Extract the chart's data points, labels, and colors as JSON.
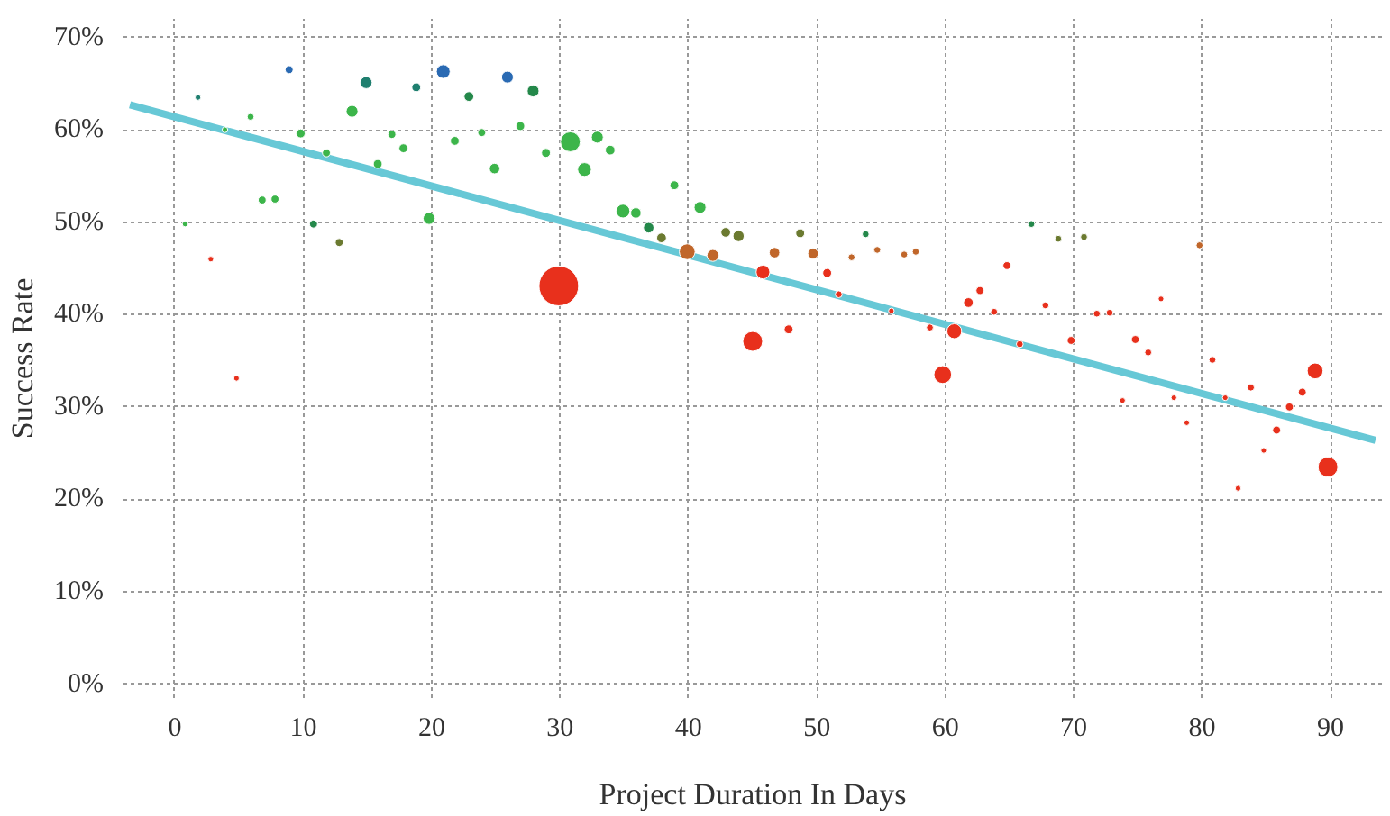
{
  "chart_data": {
    "type": "bubble",
    "xlabel": "Project Duration In Days",
    "ylabel": "Success Rate",
    "xlim": [
      -4,
      94
    ],
    "ylim": [
      -1.5,
      72
    ],
    "xticks": [
      0,
      10,
      20,
      30,
      40,
      50,
      60,
      70,
      80,
      90
    ],
    "yticks": [
      {
        "value": 0,
        "label": "0%"
      },
      {
        "value": 10,
        "label": "10%"
      },
      {
        "value": 20,
        "label": "20%"
      },
      {
        "value": 30,
        "label": "30%"
      },
      {
        "value": 40,
        "label": "40%"
      },
      {
        "value": 50,
        "label": "50%"
      },
      {
        "value": 60,
        "label": "60%"
      },
      {
        "value": 70,
        "label": "70%"
      }
    ],
    "grid": true,
    "series": [
      {
        "x": [
          1.8,
          8.9,
          14.9,
          18.8,
          20.9,
          22.9,
          25.9,
          27.9,
          5.9,
          13.8,
          3.9,
          9.8,
          11.8,
          16.9,
          17.8,
          15.8,
          21.8,
          23.9,
          24.9,
          26.9,
          6.8,
          7.8,
          0.8,
          10.8,
          19.8,
          12.8,
          2.8,
          4.8,
          28.9,
          30.8,
          32.9,
          33.9,
          31.9,
          38.9,
          40.9,
          34.9,
          35.9,
          36.9,
          37.9,
          39.9,
          41.9,
          42.9,
          43.9,
          46.7,
          48.7,
          49.7,
          53.8,
          52.7,
          54.7,
          56.8,
          57.7,
          29.9,
          45.8,
          50.8,
          51.7,
          55.8,
          58.8,
          60.7,
          45.0,
          47.8,
          59.8,
          66.7,
          68.8,
          70.8,
          79.8,
          64.8,
          62.7,
          61.8,
          63.8,
          67.8,
          76.8,
          71.8,
          72.8,
          65.8,
          69.8,
          74.8,
          75.8,
          80.8,
          88.8,
          87.8,
          83.8,
          81.8,
          86.8,
          73.8,
          77.8,
          78.8,
          85.8,
          84.8,
          82.8,
          89.8
        ],
        "values": [
          63.5,
          66.5,
          65.1,
          64.6,
          66.3,
          63.6,
          65.7,
          64.2,
          61.4,
          62.0,
          60.0,
          59.6,
          57.5,
          59.5,
          58.0,
          56.3,
          58.8,
          59.7,
          55.8,
          60.4,
          52.4,
          52.5,
          49.8,
          49.8,
          50.4,
          47.8,
          46.0,
          33.1,
          57.5,
          58.7,
          59.2,
          57.8,
          55.7,
          54.0,
          51.6,
          51.2,
          51.0,
          49.4,
          48.3,
          46.8,
          46.4,
          48.9,
          48.5,
          46.7,
          48.8,
          46.6,
          48.7,
          46.2,
          47.0,
          46.5,
          46.8,
          43.1,
          44.6,
          44.5,
          42.2,
          40.4,
          38.6,
          38.2,
          37.1,
          38.4,
          33.5,
          49.8,
          48.2,
          48.4,
          47.5,
          45.3,
          42.6,
          41.3,
          40.3,
          41.0,
          41.7,
          40.1,
          40.2,
          36.8,
          37.2,
          37.3,
          35.9,
          35.1,
          33.9,
          31.6,
          32.1,
          31.0,
          30.0,
          30.7,
          31.0,
          28.3,
          27.5,
          25.3,
          21.2,
          23.5
        ],
        "sizes": [
          0.02,
          0.04,
          0.09,
          0.05,
          0.12,
          0.06,
          0.09,
          0.09,
          0.03,
          0.09,
          0.02,
          0.05,
          0.04,
          0.04,
          0.05,
          0.05,
          0.05,
          0.04,
          0.07,
          0.05,
          0.04,
          0.04,
          0.02,
          0.04,
          0.09,
          0.04,
          0.02,
          0.02,
          0.05,
          0.25,
          0.09,
          0.06,
          0.12,
          0.05,
          0.09,
          0.12,
          0.07,
          0.07,
          0.06,
          0.16,
          0.09,
          0.06,
          0.08,
          0.07,
          0.05,
          0.07,
          0.03,
          0.03,
          0.03,
          0.03,
          0.03,
          1,
          0.12,
          0.05,
          0.03,
          0.02,
          0.03,
          0.14,
          0.25,
          0.05,
          0.2,
          0.03,
          0.03,
          0.03,
          0.03,
          0.04,
          0.04,
          0.06,
          0.03,
          0.03,
          0.02,
          0.03,
          0.03,
          0.03,
          0.04,
          0.04,
          0.03,
          0.03,
          0.16,
          0.04,
          0.03,
          0.02,
          0.04,
          0.02,
          0.02,
          0.02,
          0.04,
          0.02,
          0.02,
          0.25
        ],
        "colors": [
          "#1f7f6f",
          "#2a6ab3",
          "#1f7f6f",
          "#1f7f6f",
          "#2a6ab3",
          "#24884a",
          "#2a6ab3",
          "#24884a",
          "#3cb54a",
          "#3cb54a",
          "#3cb54a",
          "#3cb54a",
          "#3cb54a",
          "#3cb54a",
          "#3cb54a",
          "#3cb54a",
          "#3cb54a",
          "#3cb54a",
          "#3cb54a",
          "#3cb54a",
          "#3cb54a",
          "#3cb54a",
          "#3cb54a",
          "#24884a",
          "#3cb54a",
          "#6b7a30",
          "#e8301c",
          "#e8301c",
          "#3cb54a",
          "#3cb54a",
          "#3cb54a",
          "#3cb54a",
          "#3cb54a",
          "#3cb54a",
          "#3cb54a",
          "#3cb54a",
          "#3cb54a",
          "#24884a",
          "#6b7a30",
          "#c0662a",
          "#c0662a",
          "#6b7a30",
          "#6b7a30",
          "#c0662a",
          "#6b7a30",
          "#c0662a",
          "#24884a",
          "#c0662a",
          "#c0662a",
          "#c0662a",
          "#c0662a",
          "#e8301c",
          "#e8301c",
          "#e8301c",
          "#e8301c",
          "#e8301c",
          "#e8301c",
          "#e8301c",
          "#e8301c",
          "#e8301c",
          "#e8301c",
          "#24884a",
          "#6b7a30",
          "#6b7a30",
          "#c0662a",
          "#e8301c",
          "#e8301c",
          "#e8301c",
          "#e8301c",
          "#e8301c",
          "#e8301c",
          "#e8301c",
          "#e8301c",
          "#e8301c",
          "#e8301c",
          "#e8301c",
          "#e8301c",
          "#e8301c",
          "#e8301c",
          "#e8301c",
          "#e8301c",
          "#e8301c",
          "#e8301c",
          "#e8301c",
          "#e8301c",
          "#e8301c",
          "#e8301c",
          "#e8301c",
          "#e8301c",
          "#e8301c"
        ]
      },
      {
        "type": "line",
        "color": "#67c8d6",
        "x": [
          -3.5,
          93.5
        ],
        "values": [
          62.7,
          26.4
        ]
      }
    ]
  }
}
